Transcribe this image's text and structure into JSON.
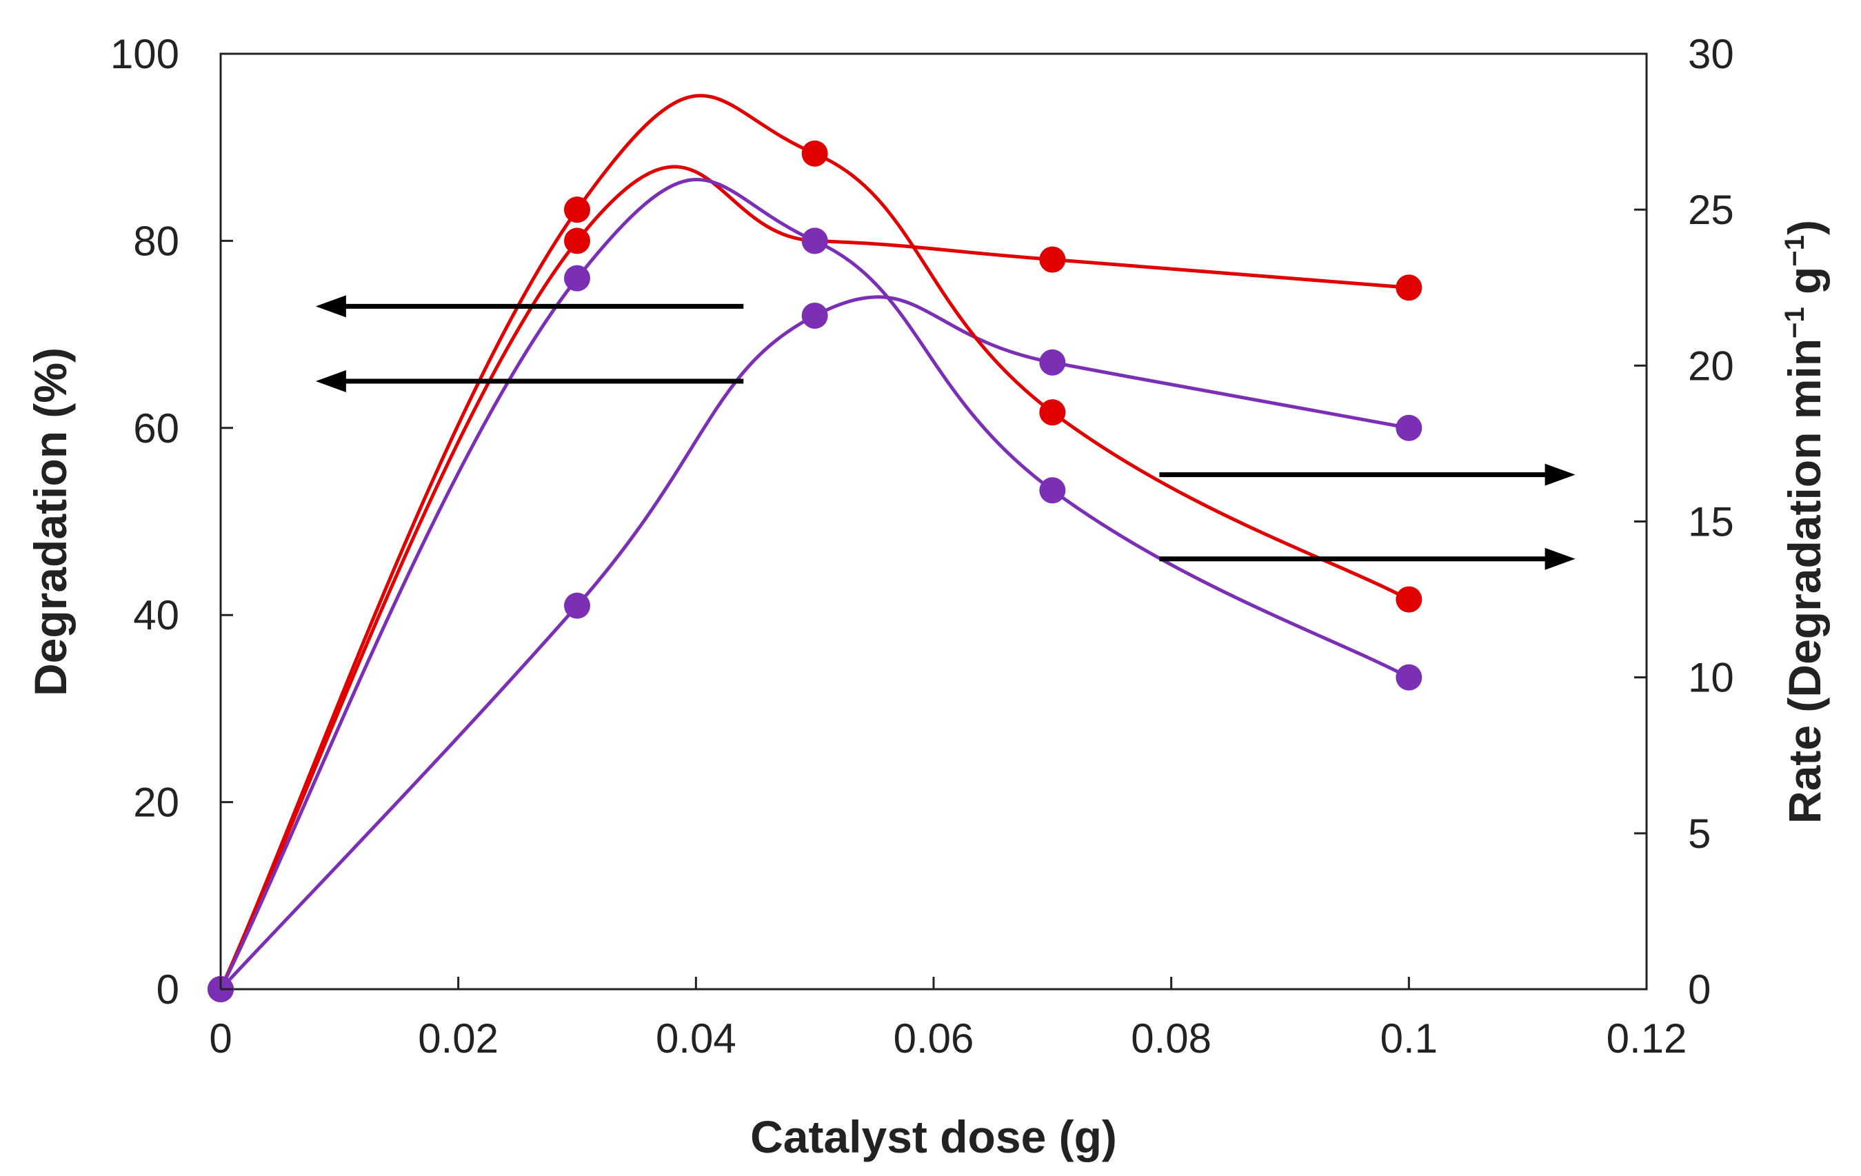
{
  "chart_data": {
    "type": "line",
    "xlabel": "Catalyst dose (g)",
    "ylabel_left": "Degradation (%)",
    "ylabel_right_parts": [
      "Rate (Degradation min",
      "−1",
      " g",
      "−1",
      ")"
    ],
    "xlim": [
      0,
      0.12
    ],
    "ylim_left": [
      0,
      100
    ],
    "ylim_right": [
      0,
      30
    ],
    "x_ticks": [
      0,
      0.02,
      0.04,
      0.06,
      0.08,
      0.1,
      0.12
    ],
    "x_tick_labels": [
      "0",
      "0.02",
      "0.04",
      "0.06",
      "0.08",
      "0.1",
      "0.12"
    ],
    "y_left_ticks": [
      0,
      20,
      40,
      60,
      80,
      100
    ],
    "y_left_tick_labels": [
      "0",
      "20",
      "40",
      "60",
      "80",
      "100"
    ],
    "y_right_ticks": [
      0,
      5,
      10,
      15,
      20,
      25,
      30
    ],
    "y_right_tick_labels": [
      "0",
      "5",
      "10",
      "15",
      "20",
      "25",
      "30"
    ],
    "grid": false,
    "series": [
      {
        "name": "red-degradation",
        "axis": "left",
        "color": "#e00000",
        "x": [
          0,
          0.03,
          0.05,
          0.07,
          0.1
        ],
        "y": [
          0,
          80,
          80,
          78,
          75
        ]
      },
      {
        "name": "purple-degradation",
        "axis": "left",
        "color": "#7a2fb5",
        "x": [
          0,
          0.03,
          0.05,
          0.07,
          0.1
        ],
        "y": [
          0,
          41,
          72,
          67,
          60
        ]
      },
      {
        "name": "red-rate",
        "axis": "right",
        "color": "#e00000",
        "x": [
          0,
          0.03,
          0.05,
          0.07,
          0.1
        ],
        "y": [
          0,
          25,
          26.8,
          18.5,
          12.5
        ]
      },
      {
        "name": "purple-rate",
        "axis": "right",
        "color": "#7a2fb5",
        "x": [
          0,
          0.03,
          0.05,
          0.07,
          0.1
        ],
        "y": [
          0,
          22.8,
          24,
          16,
          10
        ]
      }
    ],
    "annotations": [
      {
        "name": "arrow-left-1",
        "direction": "left",
        "axis": "left",
        "y": 73,
        "x_from": 0.044,
        "x_to": 0.008
      },
      {
        "name": "arrow-left-2",
        "direction": "left",
        "axis": "left",
        "y": 65,
        "x_from": 0.044,
        "x_to": 0.008
      },
      {
        "name": "arrow-right-1",
        "direction": "right",
        "axis": "right",
        "y": 16.5,
        "x_from": 0.079,
        "x_to": 0.114
      },
      {
        "name": "arrow-right-2",
        "direction": "right",
        "axis": "right",
        "y": 13.8,
        "x_from": 0.079,
        "x_to": 0.114
      }
    ]
  }
}
